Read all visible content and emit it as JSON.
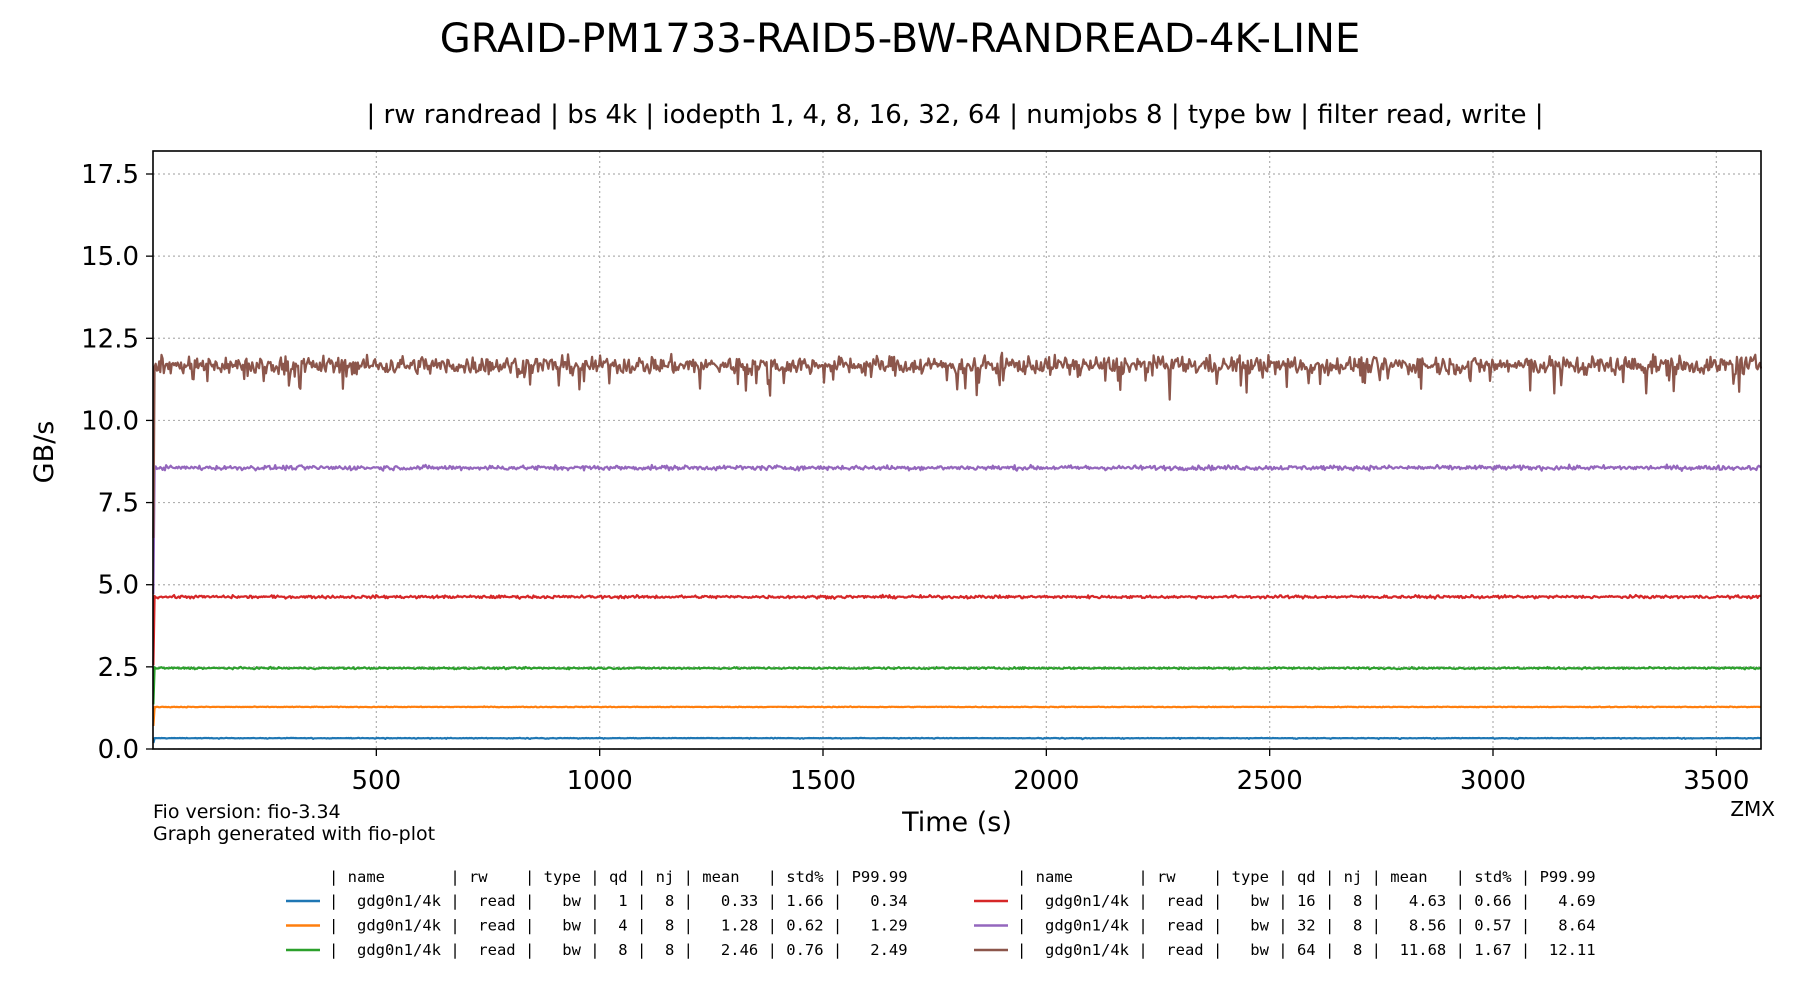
{
  "chart_data": {
    "type": "line",
    "title": "GRAID-PM1733-RAID5-BW-RANDREAD-4K-LINE",
    "subtitle": "| rw randread | bs 4k | iodepth 1, 4, 8, 16, 32, 64 | numjobs 8 | type bw | filter read, write |",
    "xlabel": "Time (s)",
    "ylabel": "GB/s",
    "xlim": [
      0,
      3600
    ],
    "ylim": [
      0,
      18.2
    ],
    "xticks": [
      500,
      1000,
      1500,
      2000,
      2500,
      3000,
      3500
    ],
    "xtick_labels": [
      "500",
      "1000",
      "1500",
      "2000",
      "2500",
      "3000",
      "3500"
    ],
    "yticks": [
      0,
      2.5,
      5,
      7.5,
      10,
      12.5,
      15,
      17.5
    ],
    "ytick_labels": [
      "0.0",
      "2.5",
      "5.0",
      "7.5",
      "10.0",
      "12.5",
      "15.0",
      "17.5"
    ],
    "grid": true,
    "x_range": [
      1,
      3600
    ],
    "footnotes": [
      "Fio version: fio-3.34",
      "Graph generated with fio-plot"
    ],
    "corner_label": "ZMX",
    "series": [
      {
        "name": "gdg0n1/4k",
        "color": "#1f77b4",
        "qd": "1",
        "mean": 0.33,
        "std_pct": 1.66,
        "p9999": 0.34
      },
      {
        "name": "gdg0n1/4k",
        "color": "#ff7f0e",
        "qd": "4",
        "mean": 1.28,
        "std_pct": 0.62,
        "p9999": 1.29
      },
      {
        "name": "gdg0n1/4k",
        "color": "#2ca02c",
        "qd": "8",
        "mean": 2.46,
        "std_pct": 0.76,
        "p9999": 2.49
      },
      {
        "name": "gdg0n1/4k",
        "color": "#d62728",
        "qd": "16",
        "mean": 4.63,
        "std_pct": 0.66,
        "p9999": 4.69
      },
      {
        "name": "gdg0n1/4k",
        "color": "#9467bd",
        "qd": "32",
        "mean": 8.56,
        "std_pct": 0.57,
        "p9999": 8.64
      },
      {
        "name": "gdg0n1/4k",
        "color": "#8c564b",
        "qd": "64",
        "mean": 11.68,
        "std_pct": 1.67,
        "p9999": 12.11
      }
    ],
    "legend": {
      "placement": "bottom",
      "header": "| name       | rw    | type | qd | nj | mean   | std% | P99.99",
      "rows": [
        "|  gdg0n1/4k |  read |   bw |  1 |  8 |   0.33 | 1.66 |   0.34",
        "|  gdg0n1/4k |  read |   bw |  4 |  8 |   1.28 | 0.62 |   1.29",
        "|  gdg0n1/4k |  read |   bw |  8 |  8 |   2.46 | 0.76 |   2.49",
        "|  gdg0n1/4k |  read |   bw | 16 |  8 |   4.63 | 0.66 |   4.69",
        "|  gdg0n1/4k |  read |   bw | 32 |  8 |   8.56 | 0.57 |   8.64",
        "|  gdg0n1/4k |  read |   bw | 64 |  8 |  11.68 | 1.67 |  12.11"
      ]
    }
  }
}
